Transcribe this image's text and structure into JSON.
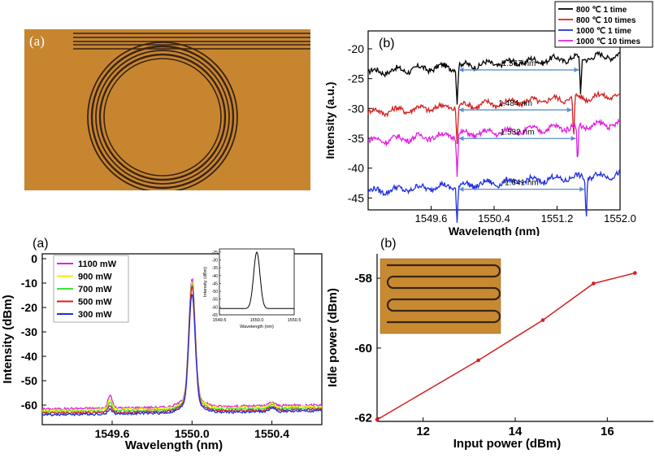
{
  "panel_a_top": {
    "label": "(a)",
    "colors": {
      "substrate": "#c7852f",
      "waveguide": "#3a2414"
    }
  },
  "chart_data": [
    {
      "id": "top-right",
      "type": "line",
      "panel_label": "(b)",
      "xlabel": "Wavelength (nm)",
      "ylabel": "Intensity (a.u.)",
      "xlim": [
        1548.8,
        1552.0
      ],
      "ylim": [
        -47,
        -17
      ],
      "xticks": [
        "1549.6",
        "1550.4",
        "1551.2",
        "1552.0"
      ],
      "yticks": [
        "-20",
        "-25",
        "-30",
        "-35",
        "-40",
        "-45"
      ],
      "legend_position": "top-right",
      "series": [
        {
          "name": "800 ℃ 1 time",
          "color": "#000000",
          "offset": -22.5,
          "dips": [
            1549.93,
            1551.5
          ],
          "fsr_label": "1.567 nm"
        },
        {
          "name": "800 ℃ 10 times",
          "color": "#d42020",
          "offset": -29.2,
          "dips": [
            1549.93,
            1551.41
          ],
          "fsr_label": "1.484 nm"
        },
        {
          "name": "1000 ℃ 1 time",
          "color": "#1f2fe0",
          "offset": -42.5,
          "dips": [
            1549.93,
            1551.57
          ],
          "fsr_label": "1.641 nm"
        },
        {
          "name": "1000 ℃ 10 times",
          "color": "#e020e0",
          "offset": -34.0,
          "dips": [
            1549.93,
            1551.46
          ],
          "fsr_label": "1.532 nm"
        }
      ]
    },
    {
      "id": "bottom-left",
      "type": "line",
      "panel_label": "(a)",
      "xlabel": "Wavelength (nm)",
      "ylabel": "Intensity (dBm)",
      "xlim": [
        1549.25,
        1550.65
      ],
      "ylim": [
        -68,
        2
      ],
      "xticks": [
        "1549.6",
        "1550.0",
        "1550.4"
      ],
      "yticks": [
        "0",
        "-10",
        "-20",
        "-30",
        "-40",
        "-50",
        "-60"
      ],
      "legend_position": "top-left",
      "series": [
        {
          "name": "1100 mW",
          "color": "#e020e0",
          "peak": -9
        },
        {
          "name": "900 mW",
          "color": "#f0f000",
          "peak": -10
        },
        {
          "name": "700 mW",
          "color": "#40e040",
          "peak": -11
        },
        {
          "name": "500 mW",
          "color": "#d42020",
          "peak": -12
        },
        {
          "name": "300 mW",
          "color": "#1f2fe0",
          "peak": -15
        }
      ],
      "inset": {
        "xlabel": "Wavelength (nm)",
        "ylabel": "Intensity (dBm)",
        "xticks": [
          "1549.5",
          "1550.0",
          "1550.5"
        ],
        "yticks": [
          "-25",
          "-30",
          "-35",
          "-40",
          "-45",
          "-50",
          "-55",
          "-60",
          "-65"
        ],
        "xlim": [
          1549.5,
          1550.5
        ],
        "ylim": [
          -65,
          -23
        ],
        "peak_x": 1550.0,
        "peak_y": -25,
        "baseline": -61
      }
    },
    {
      "id": "bottom-right",
      "type": "line",
      "panel_label": "(b)",
      "xlabel": "Input power (dBm)",
      "ylabel": "Idle power (dBm)",
      "xlim": [
        11.0,
        17.0
      ],
      "ylim": [
        -62.1,
        -57.3
      ],
      "xticks": [
        "12",
        "14",
        "16"
      ],
      "yticks": [
        "-58",
        "-60",
        "-62"
      ],
      "series": [
        {
          "name": "",
          "color": "#d42020",
          "x": [
            11.0,
            13.2,
            14.6,
            15.7,
            16.6
          ],
          "y": [
            -62.05,
            -60.35,
            -59.2,
            -58.15,
            -57.85
          ]
        }
      ]
    }
  ]
}
